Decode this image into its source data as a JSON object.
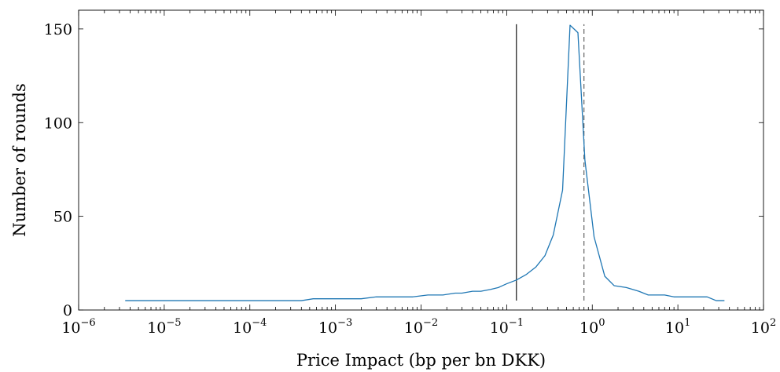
{
  "chart_data": {
    "type": "line",
    "title": "",
    "xlabel": "Price Impact (bp per bn DKK)",
    "ylabel": "Number of rounds",
    "x_scale": "log",
    "xlim": [
      1e-06,
      100
    ],
    "ylim": [
      0,
      160
    ],
    "x_ticks": [
      {
        "value": 1e-06,
        "base": "10",
        "exp": "−6"
      },
      {
        "value": 1e-05,
        "base": "10",
        "exp": "−5"
      },
      {
        "value": 0.0001,
        "base": "10",
        "exp": "−4"
      },
      {
        "value": 0.001,
        "base": "10",
        "exp": "−3"
      },
      {
        "value": 0.01,
        "base": "10",
        "exp": "−2"
      },
      {
        "value": 0.1,
        "base": "10",
        "exp": "−1"
      },
      {
        "value": 1,
        "base": "10",
        "exp": "0"
      },
      {
        "value": 10,
        "base": "10",
        "exp": "1"
      },
      {
        "value": 100,
        "base": "10",
        "exp": "2"
      }
    ],
    "y_ticks": [
      0,
      50,
      100,
      150
    ],
    "grid": false,
    "series": [
      {
        "color": "#1f77b4",
        "x": [
          3.5e-06,
          1e-05,
          0.0001,
          0.0004,
          0.00055,
          0.001,
          0.002,
          0.003,
          0.005,
          0.008,
          0.012,
          0.018,
          0.025,
          0.03,
          0.04,
          0.05,
          0.065,
          0.08,
          0.1,
          0.13,
          0.17,
          0.22,
          0.28,
          0.35,
          0.45,
          0.55,
          0.68,
          0.82,
          1.05,
          1.4,
          1.8,
          2.5,
          3.5,
          4.5,
          7,
          9,
          14,
          22,
          28,
          35
        ],
        "y": [
          5,
          5,
          5,
          5,
          6,
          6,
          6,
          7,
          7,
          7,
          8,
          8,
          9,
          9,
          10,
          10,
          11,
          12,
          14,
          16,
          19,
          23,
          29,
          40,
          64,
          152,
          148,
          80,
          39,
          18,
          13,
          12,
          10,
          8,
          8,
          7,
          7,
          7,
          5,
          5
        ]
      }
    ],
    "reference_lines": [
      {
        "x": 0.13,
        "style": "solid",
        "color": "#000000"
      },
      {
        "x": 0.8,
        "style": "dashed",
        "color": "#555555"
      }
    ]
  }
}
